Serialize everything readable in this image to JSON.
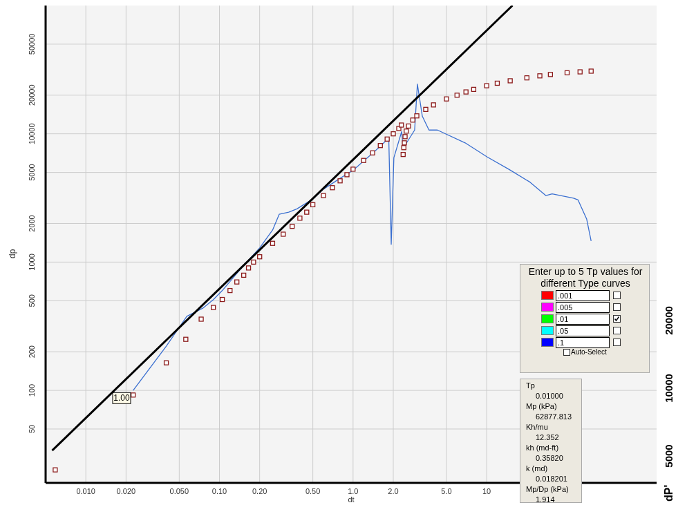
{
  "chart_data": [
    {
      "type": "scatter",
      "xlabel": "dt",
      "ylabel": "dp",
      "log": "xy",
      "grid": true,
      "legend": false,
      "xlim": [
        0.005,
        187
      ],
      "ylim": [
        19,
        100000
      ],
      "xticks": [
        {
          "value": 0.01,
          "label": "0.010"
        },
        {
          "value": 0.02,
          "label": "0.020"
        },
        {
          "value": 0.05,
          "label": "0.050"
        },
        {
          "value": 0.1,
          "label": "0.10"
        },
        {
          "value": 0.2,
          "label": "0.20"
        },
        {
          "value": 0.5,
          "label": "0.50"
        },
        {
          "value": 1,
          "label": "1.0"
        },
        {
          "value": 2,
          "label": "2.0"
        },
        {
          "value": 5,
          "label": "5.0"
        },
        10
      ],
      "yticks": [
        50,
        100,
        200,
        500,
        1000,
        2000,
        5000,
        10000,
        20000,
        50000
      ],
      "series": [
        {
          "marker": "square",
          "color": "#8b1a1a",
          "x": [
            0.0059,
            0.0226,
            0.04,
            0.056,
            0.073,
            0.09,
            0.105,
            0.12,
            0.135,
            0.152,
            0.165,
            0.18,
            0.2,
            0.25,
            0.3,
            0.35,
            0.4,
            0.45,
            0.5,
            0.6,
            0.7,
            0.8,
            0.9,
            1.0,
            1.2,
            1.4,
            1.6,
            1.8,
            2.0,
            2.2,
            2.3,
            2.37,
            2.4,
            2.42,
            2.45,
            2.5,
            2.6,
            2.8,
            3.0,
            3.5,
            4,
            5,
            6,
            7,
            8,
            10,
            12,
            15,
            20,
            25,
            30,
            40,
            50,
            60.5
          ],
          "values": [
            24,
            92,
            164,
            250,
            359,
            443,
            511,
            600,
            700,
            790,
            900,
            1000,
            1100,
            1400,
            1650,
            1900,
            2200,
            2450,
            2800,
            3300,
            3800,
            4300,
            4800,
            5300,
            6200,
            7100,
            8100,
            9100,
            10000,
            11000,
            11700,
            6900,
            7800,
            8500,
            9500,
            10500,
            11500,
            12800,
            13800,
            15500,
            16800,
            18700,
            20000,
            21200,
            22200,
            23700,
            24800,
            25900,
            27300,
            28300,
            29000,
            29900,
            30400,
            30800
          ]
        },
        {
          "type": "line",
          "marker": "none",
          "line_style": "solid",
          "color": "#3a6fd0",
          "x": [
            0.0226,
            0.04,
            0.057,
            0.075,
            0.09,
            0.105,
            0.15,
            0.2,
            0.25,
            0.28,
            0.33,
            0.38,
            0.5,
            0.6,
            0.8,
            1.0,
            1.3,
            1.6,
            1.85,
            1.93,
            2.02,
            2.31,
            2.37,
            2.89,
            3.03,
            3.3,
            3.7,
            4.28,
            6.9,
            10.1,
            14.6,
            21.1,
            27.7,
            30.9,
            44.7,
            48.3,
            56,
            60.5
          ],
          "values": [
            100,
            221,
            378,
            437,
            510,
            600,
            930,
            1290,
            1780,
            2360,
            2450,
            2600,
            3100,
            3700,
            4500,
            5200,
            6600,
            8000,
            9300,
            1375,
            6500,
            10400,
            7700,
            10700,
            24400,
            13700,
            10700,
            10700,
            8500,
            6600,
            5300,
            4200,
            3300,
            3400,
            3150,
            3050,
            2170,
            1460
          ]
        },
        {
          "type": "line",
          "marker": "none",
          "line_style": "solid",
          "color": "#000000",
          "x": [
            0.0056,
            15.6
          ],
          "values": [
            34,
            100000
          ]
        }
      ],
      "annotations": [
        {
          "text": "1.00",
          "x": 0.0155,
          "y": 87
        },
        "Enter up to 5 Tp values for different Type curves",
        ".001",
        ".005",
        ".01",
        ".05",
        ".1",
        "Auto-Select",
        "Tp",
        "0.01000",
        "Mp (kPa)",
        "62877.813",
        "Kh/mu",
        "12.352",
        "kh (md-ft)",
        "0.35820",
        "k (md)",
        "0.018201",
        "Mp/Dp (kPa)",
        "1.914"
      ]
    },
    {
      "type": "other",
      "ylabel": "dP'",
      "annotations": [
        "20000",
        "10000",
        "5000"
      ]
    }
  ]
}
